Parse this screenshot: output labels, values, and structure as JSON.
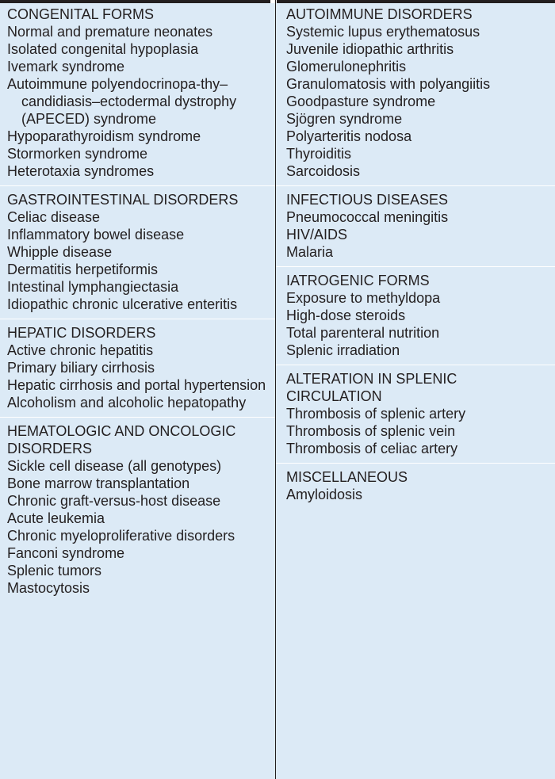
{
  "colors": {
    "background": "#dceaf6",
    "text": "#231f20",
    "rule": "#231f20",
    "separator": "#ffffff"
  },
  "left_column": [
    {
      "heading": "CONGENITAL FORMS",
      "items": [
        "Normal and premature neonates",
        "Isolated congenital hypoplasia",
        "Ivemark syndrome",
        "Autoimmune polyendocrinopa-thy–candidiasis–ectodermal dystrophy (APECED) syndrome",
        "Hypoparathyroidism syndrome",
        "Stormorken syndrome",
        "Heterotaxia syndromes"
      ]
    },
    {
      "heading": "GASTROINTESTINAL DISORDERS",
      "items": [
        "Celiac disease",
        "Inflammatory bowel disease",
        "Whipple disease",
        "Dermatitis herpetiformis",
        "Intestinal lymphangiectasia",
        "Idiopathic chronic ulcerative enteritis"
      ]
    },
    {
      "heading": "HEPATIC DISORDERS",
      "items": [
        "Active chronic hepatitis",
        "Primary biliary cirrhosis",
        "Hepatic cirrhosis and portal hypertension",
        "Alcoholism and alcoholic hepatopathy"
      ]
    },
    {
      "heading": "HEMATOLOGIC AND ONCOLOGIC DISORDERS",
      "items": [
        "Sickle cell disease (all genotypes)",
        "Bone marrow transplantation",
        "Chronic graft-versus-host disease",
        "Acute leukemia",
        "Chronic myeloproliferative disorders",
        "Fanconi syndrome",
        "Splenic tumors",
        "Mastocytosis"
      ]
    }
  ],
  "right_column": [
    {
      "heading": "AUTOIMMUNE DISORDERS",
      "items": [
        "Systemic lupus erythematosus",
        "Juvenile idiopathic arthritis",
        "Glomerulonephritis",
        "Granulomatosis with polyangiitis",
        "Goodpasture syndrome",
        "Sjögren syndrome",
        "Polyarteritis nodosa",
        "Thyroiditis",
        "Sarcoidosis"
      ]
    },
    {
      "heading": "INFECTIOUS DISEASES",
      "items": [
        "Pneumococcal meningitis",
        "HIV/AIDS",
        "Malaria"
      ]
    },
    {
      "heading": "IATROGENIC FORMS",
      "items": [
        "Exposure to methyldopa",
        "High-dose steroids",
        "Total parenteral nutrition",
        "Splenic irradiation"
      ]
    },
    {
      "heading": "ALTERATION IN SPLENIC CIRCULATION",
      "items": [
        "Thrombosis of splenic artery",
        "Thrombosis of splenic vein",
        "Thrombosis of celiac artery"
      ]
    },
    {
      "heading": "MISCELLANEOUS",
      "items": [
        "Amyloidosis"
      ]
    }
  ]
}
